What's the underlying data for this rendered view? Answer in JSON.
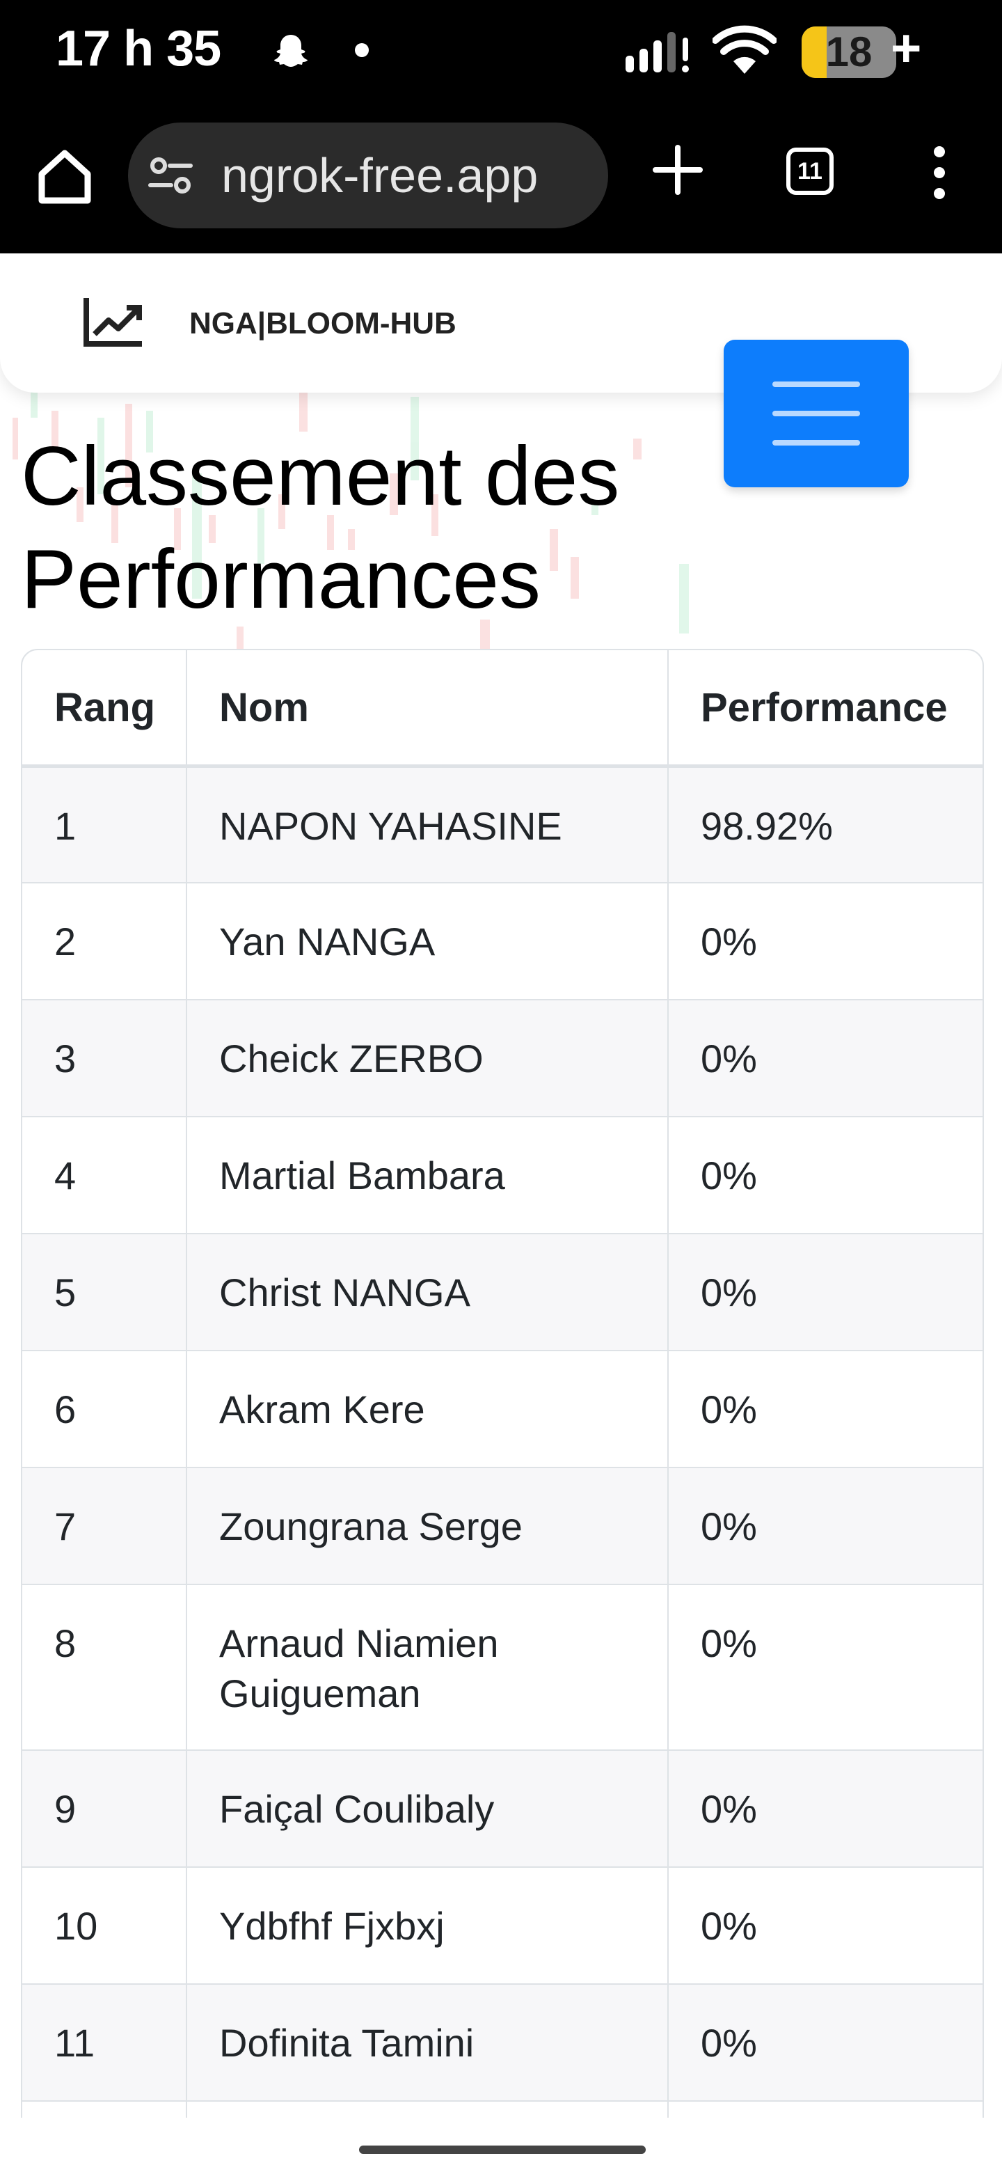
{
  "status_bar": {
    "time": "17 h 35",
    "battery": "18",
    "icons": [
      "snapchat-icon",
      "notification-dot-icon",
      "signal-icon",
      "wifi-icon",
      "battery-icon",
      "charging-plus-icon"
    ]
  },
  "browser": {
    "url": "ngrok-free.app",
    "tab_count": "11",
    "icons": [
      "home-icon",
      "site-settings-icon",
      "new-tab-icon",
      "tab-switcher-icon",
      "more-menu-icon"
    ]
  },
  "navbar": {
    "brand": "NGA|BLOOM-HUB",
    "logo_icon": "trending-chart-icon",
    "menu_icon": "hamburger-menu-icon",
    "menu_color": "#0d7dfc"
  },
  "page": {
    "title": "Classement des Performances"
  },
  "table": {
    "headers": [
      "Rang",
      "Nom",
      "Performance"
    ],
    "rows": [
      {
        "rank": "1",
        "name": "NAPON YAHASINE",
        "performance": "98.92%"
      },
      {
        "rank": "2",
        "name": "Yan NANGA",
        "performance": "0%"
      },
      {
        "rank": "3",
        "name": "Cheick ZERBO",
        "performance": "0%"
      },
      {
        "rank": "4",
        "name": "Martial Bambara",
        "performance": "0%"
      },
      {
        "rank": "5",
        "name": "Christ NANGA",
        "performance": "0%"
      },
      {
        "rank": "6",
        "name": "Akram Kere",
        "performance": "0%"
      },
      {
        "rank": "7",
        "name": "Zoungrana Serge",
        "performance": "0%"
      },
      {
        "rank": "8",
        "name": "Arnaud Niamien Guigueman",
        "performance": "0%"
      },
      {
        "rank": "9",
        "name": "Faiçal Coulibaly",
        "performance": "0%"
      },
      {
        "rank": "10",
        "name": "Ydbfhf Fjxbxj",
        "performance": "0%"
      },
      {
        "rank": "11",
        "name": "Dofinita Tamini",
        "performance": "0%"
      },
      {
        "rank": "",
        "name": "",
        "performance": ""
      }
    ]
  }
}
